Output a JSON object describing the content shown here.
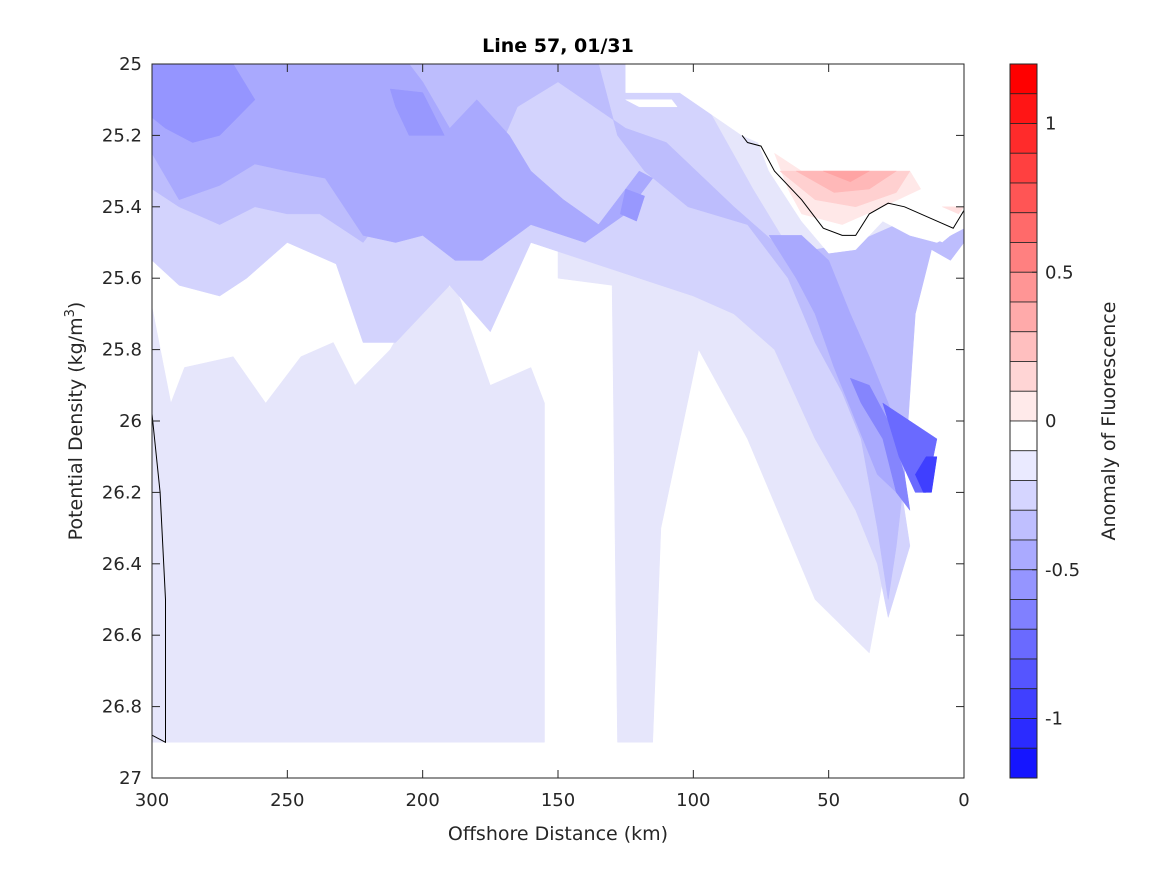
{
  "chart_data": {
    "type": "contourf",
    "title": "Line 57, 01/31",
    "xlabel": "Offshore Distance (km)",
    "ylabel": "Potential Density (kg/m",
    "ylabel_superscript": "3",
    "ylabel_suffix": ")",
    "xlim": [
      300,
      0
    ],
    "ylim": [
      25,
      27
    ],
    "x_reversed": true,
    "y_reversed": true,
    "x_ticks": [
      300,
      250,
      200,
      150,
      100,
      50,
      0
    ],
    "x_tick_labels": [
      "300",
      "250",
      "200",
      "150",
      "100",
      "50",
      "0"
    ],
    "y_ticks": [
      25,
      25.2,
      25.4,
      25.6,
      25.8,
      26,
      26.2,
      26.4,
      26.6,
      26.8,
      27
    ],
    "y_tick_labels": [
      "25",
      "25.2",
      "25.4",
      "25.6",
      "25.8",
      "26",
      "26.2",
      "26.4",
      "26.6",
      "26.8",
      "27"
    ],
    "grid": false,
    "colorbar": {
      "label": "Anomaly of Fluorescence",
      "position": "right",
      "range": [
        -1.2,
        1.2
      ],
      "level_step": 0.1,
      "ticks": [
        1,
        0.5,
        0,
        -0.5,
        -1
      ],
      "tick_labels": [
        "1",
        "0.5",
        "0",
        "-0.5",
        "-1"
      ],
      "colors_top_to_bottom": [
        "#ff0000",
        "#ff1515",
        "#ff2b2b",
        "#ff4040",
        "#ff5555",
        "#ff6a6a",
        "#ff8080",
        "#ff9595",
        "#ffaaaa",
        "#ffbfbf",
        "#ffd5d5",
        "#ffeaea",
        "#ffffff",
        "#eaeaff",
        "#d5d5ff",
        "#bfbfff",
        "#aaaaff",
        "#9595ff",
        "#8080ff",
        "#6a6aff",
        "#5555ff",
        "#4040ff",
        "#2b2bff",
        "#1515ff"
      ]
    },
    "layers": [
      {
        "level": -0.1,
        "color": "#e6e6fb",
        "points": [
          [
            300,
            25
          ],
          [
            150,
            25
          ],
          [
            150,
            25.6
          ],
          [
            130,
            25.62
          ],
          [
            128,
            26.9
          ],
          [
            115,
            26.9
          ],
          [
            112,
            26.3
          ],
          [
            98,
            25.8
          ],
          [
            80,
            26.05
          ],
          [
            55,
            26.5
          ],
          [
            35,
            26.65
          ],
          [
            24,
            26.2
          ],
          [
            18,
            25.4
          ],
          [
            0,
            25.45
          ],
          [
            0,
            25
          ],
          [
            300,
            25
          ]
        ]
      },
      {
        "level": -0.1,
        "color": "#e6e6fb",
        "points": [
          [
            300,
            25.68
          ],
          [
            293,
            25.95
          ],
          [
            288,
            25.85
          ],
          [
            270,
            25.82
          ],
          [
            258,
            25.95
          ],
          [
            245,
            25.82
          ],
          [
            233,
            25.78
          ],
          [
            225,
            25.9
          ],
          [
            212,
            25.8
          ],
          [
            200,
            25.64
          ],
          [
            188,
            25.62
          ],
          [
            175,
            25.9
          ],
          [
            160,
            25.85
          ],
          [
            155,
            25.95
          ],
          [
            155,
            26.9
          ],
          [
            300,
            26.9
          ]
        ]
      },
      {
        "level": -0.2,
        "color": "#d3d3fd",
        "points": [
          [
            300,
            25
          ],
          [
            125,
            25
          ],
          [
            112,
            25.05
          ],
          [
            95,
            25.12
          ],
          [
            78,
            25.35
          ],
          [
            62,
            25.55
          ],
          [
            55,
            25.6
          ],
          [
            48,
            25.72
          ],
          [
            35,
            25.85
          ],
          [
            25,
            26.1
          ],
          [
            20,
            26.35
          ],
          [
            28,
            26.55
          ],
          [
            32,
            26.4
          ],
          [
            40,
            26.25
          ],
          [
            55,
            26.05
          ],
          [
            70,
            25.8
          ],
          [
            85,
            25.7
          ],
          [
            100,
            25.65
          ],
          [
            120,
            25.6
          ],
          [
            140,
            25.55
          ],
          [
            160,
            25.5
          ],
          [
            175,
            25.75
          ],
          [
            190,
            25.62
          ],
          [
            210,
            25.78
          ],
          [
            222,
            25.78
          ],
          [
            232,
            25.56
          ],
          [
            250,
            25.5
          ],
          [
            265,
            25.6
          ],
          [
            275,
            25.65
          ],
          [
            290,
            25.62
          ],
          [
            300,
            25.55
          ]
        ]
      },
      {
        "level": -0.3,
        "color": "#bdbdfd",
        "points": [
          [
            300,
            25
          ],
          [
            135,
            25
          ],
          [
            128,
            25.2
          ],
          [
            118,
            25.3
          ],
          [
            102,
            25.4
          ],
          [
            80,
            25.45
          ],
          [
            65,
            25.6
          ],
          [
            55,
            25.78
          ],
          [
            45,
            25.92
          ],
          [
            38,
            26.05
          ],
          [
            32,
            26.3
          ],
          [
            28,
            26.5
          ],
          [
            25,
            26.35
          ],
          [
            22,
            26.15
          ],
          [
            18,
            25.7
          ],
          [
            12,
            25.52
          ],
          [
            5,
            25.55
          ],
          [
            0,
            25.5
          ],
          [
            0,
            25.45
          ],
          [
            8,
            25.5
          ],
          [
            25,
            25.45
          ],
          [
            40,
            25.5
          ],
          [
            55,
            25.52
          ],
          [
            70,
            25.5
          ],
          [
            85,
            25.4
          ],
          [
            110,
            25.22
          ],
          [
            125,
            25.18
          ],
          [
            150,
            25.05
          ],
          [
            165,
            25.12
          ],
          [
            178,
            25.35
          ],
          [
            188,
            25.42
          ],
          [
            200,
            25.38
          ],
          [
            212,
            25.4
          ],
          [
            222,
            25.5
          ],
          [
            238,
            25.42
          ],
          [
            250,
            25.42
          ],
          [
            262,
            25.4
          ],
          [
            275,
            25.45
          ],
          [
            290,
            25.4
          ],
          [
            300,
            25.35
          ]
        ]
      },
      {
        "level": -0.4,
        "color": "#a9a9fe",
        "points": [
          [
            300,
            25
          ],
          [
            205,
            25
          ],
          [
            200,
            25.05
          ],
          [
            190,
            25.18
          ],
          [
            180,
            25.1
          ],
          [
            168,
            25.2
          ],
          [
            160,
            25.3
          ],
          [
            148,
            25.38
          ],
          [
            135,
            25.45
          ],
          [
            120,
            25.3
          ],
          [
            115,
            25.32
          ],
          [
            125,
            25.42
          ],
          [
            140,
            25.5
          ],
          [
            160,
            25.45
          ],
          [
            178,
            25.55
          ],
          [
            188,
            25.55
          ],
          [
            200,
            25.48
          ],
          [
            210,
            25.5
          ],
          [
            222,
            25.48
          ],
          [
            236,
            25.32
          ],
          [
            250,
            25.3
          ],
          [
            262,
            25.28
          ],
          [
            275,
            25.34
          ],
          [
            290,
            25.38
          ],
          [
            300,
            25.25
          ]
        ]
      },
      {
        "level": -0.4,
        "color": "#a9a9fe",
        "points": [
          [
            72,
            25.48
          ],
          [
            60,
            25.48
          ],
          [
            50,
            25.55
          ],
          [
            42,
            25.7
          ],
          [
            35,
            25.82
          ],
          [
            28,
            25.95
          ],
          [
            22,
            26.1
          ],
          [
            25,
            26.2
          ],
          [
            32,
            26.15
          ],
          [
            40,
            26.0
          ],
          [
            48,
            25.85
          ],
          [
            55,
            25.7
          ],
          [
            62,
            25.6
          ]
        ]
      },
      {
        "level": -0.5,
        "color": "#9595ff",
        "points": [
          [
            300,
            25
          ],
          [
            270,
            25
          ],
          [
            262,
            25.1
          ],
          [
            275,
            25.2
          ],
          [
            285,
            25.22
          ],
          [
            295,
            25.18
          ],
          [
            300,
            25.15
          ]
        ]
      },
      {
        "level": -0.5,
        "color": "#9898fe",
        "points": [
          [
            212,
            25.07
          ],
          [
            200,
            25.08
          ],
          [
            192,
            25.2
          ],
          [
            205,
            25.2
          ],
          [
            210,
            25.12
          ]
        ]
      },
      {
        "level": -0.5,
        "color": "#9898fe",
        "points": [
          [
            125,
            25.35
          ],
          [
            118,
            25.37
          ],
          [
            121,
            25.44
          ],
          [
            127,
            25.42
          ]
        ]
      },
      {
        "level": -0.6,
        "color": "#8585fd",
        "points": [
          [
            42,
            25.88
          ],
          [
            35,
            25.9
          ],
          [
            28,
            26.0
          ],
          [
            22,
            26.15
          ],
          [
            20,
            26.25
          ],
          [
            25,
            26.2
          ],
          [
            30,
            26.05
          ],
          [
            38,
            25.95
          ]
        ]
      },
      {
        "level": -0.7,
        "color": "#6a6aff",
        "points": [
          [
            30,
            25.95
          ],
          [
            24,
            26.1
          ],
          [
            18,
            26.2
          ],
          [
            14,
            26.2
          ],
          [
            10,
            26.05
          ],
          [
            20,
            26.0
          ]
        ]
      },
      {
        "level": -0.8,
        "color": "#3f3fff",
        "points": [
          [
            18,
            26.15
          ],
          [
            15,
            26.2
          ],
          [
            12,
            26.2
          ],
          [
            10,
            26.1
          ],
          [
            14,
            26.1
          ]
        ]
      },
      {
        "level": 0,
        "color": "#ffffff",
        "points": [
          [
            125,
            25
          ],
          [
            125,
            25.08
          ],
          [
            112,
            25.08
          ],
          [
            105,
            25.08
          ],
          [
            82,
            25.2
          ],
          [
            76,
            25.22
          ],
          [
            72,
            25.3
          ],
          [
            60,
            25.44
          ],
          [
            50,
            25.53
          ],
          [
            40,
            25.52
          ],
          [
            30,
            25.44
          ],
          [
            20,
            25.48
          ],
          [
            10,
            25.5
          ],
          [
            0,
            25.46
          ],
          [
            0,
            25
          ],
          [
            125,
            25
          ]
        ]
      },
      {
        "level": 0,
        "color": "#ffffff",
        "points": [
          [
            125,
            25.1
          ],
          [
            120,
            25.1
          ],
          [
            108,
            25.1
          ],
          [
            106,
            25.12
          ],
          [
            120,
            25.12
          ]
        ]
      },
      {
        "level": 0.1,
        "color": "#ffe8e8",
        "points": [
          [
            70,
            25.25
          ],
          [
            60,
            25.3
          ],
          [
            20,
            25.3
          ],
          [
            16,
            25.35
          ],
          [
            30,
            25.4
          ],
          [
            45,
            25.45
          ],
          [
            60,
            25.42
          ],
          [
            65,
            25.35
          ]
        ]
      },
      {
        "level": 0.2,
        "color": "#ffd0d0",
        "points": [
          [
            68,
            25.3
          ],
          [
            55,
            25.3
          ],
          [
            20,
            25.3
          ],
          [
            25,
            25.36
          ],
          [
            40,
            25.4
          ],
          [
            55,
            25.38
          ]
        ]
      },
      {
        "level": 0.3,
        "color": "#ffb8b8",
        "points": [
          [
            62,
            25.3
          ],
          [
            25,
            25.3
          ],
          [
            35,
            25.35
          ],
          [
            48,
            25.36
          ]
        ]
      },
      {
        "level": 0.4,
        "color": "#ffa4a4",
        "points": [
          [
            52,
            25.3
          ],
          [
            35,
            25.3
          ],
          [
            42,
            25.33
          ]
        ]
      },
      {
        "level": 0.1,
        "color": "#ffe0e0",
        "points": [
          [
            8,
            25.4
          ],
          [
            0,
            25.4
          ],
          [
            2,
            25.42
          ]
        ]
      }
    ],
    "zero_contours": [
      {
        "points": [
          [
            82,
            25.2
          ],
          [
            80,
            25.22
          ],
          [
            75,
            25.23
          ],
          [
            70,
            25.3
          ],
          [
            60,
            25.38
          ],
          [
            52,
            25.46
          ],
          [
            45,
            25.48
          ],
          [
            40,
            25.48
          ],
          [
            35,
            25.42
          ],
          [
            28,
            25.39
          ],
          [
            22,
            25.4
          ],
          [
            10,
            25.44
          ],
          [
            4,
            25.46
          ],
          [
            0,
            25.41
          ]
        ]
      },
      {
        "points": [
          [
            300,
            25.98
          ],
          [
            297,
            26.2
          ],
          [
            295,
            26.5
          ],
          [
            295,
            26.7
          ],
          [
            295,
            26.9
          ],
          [
            300,
            26.88
          ]
        ]
      }
    ]
  }
}
